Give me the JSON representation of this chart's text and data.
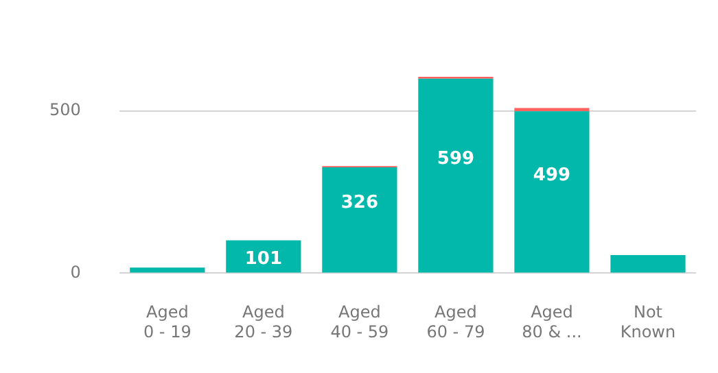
{
  "chart_data": {
    "type": "bar",
    "stacked": true,
    "categories": [
      "Aged 0 - 19",
      "Aged 20 - 39",
      "Aged 40 - 59",
      "Aged 60 - 79",
      "Aged 80 & ...",
      "Not Known"
    ],
    "series": [
      {
        "color": "#01b8aa",
        "values": [
          17,
          101,
          326,
          599,
          499,
          56
        ],
        "value_labels": [
          null,
          "101",
          "326",
          "599",
          "499",
          null
        ]
      },
      {
        "color": "#fd625e",
        "values": [
          null,
          null,
          4,
          6,
          10,
          0
        ]
      }
    ],
    "ylim": [
      0,
      605
    ],
    "yticks": [
      0,
      500
    ],
    "grid": "y",
    "legend": false
  }
}
